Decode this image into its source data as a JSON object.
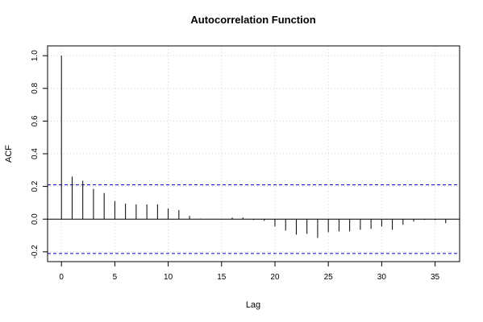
{
  "chart_data": {
    "type": "bar",
    "title": "Autocorrelation Function",
    "xlabel": "Lag",
    "ylabel": "ACF",
    "xlim": [
      -1.3,
      37.3
    ],
    "ylim": [
      -0.26,
      1.06
    ],
    "x_ticks": [
      "0",
      "5",
      "10",
      "15",
      "20",
      "25",
      "30",
      "35"
    ],
    "y_ticks": [
      "-0.2",
      "0.0",
      "0.2",
      "0.4",
      "0.6",
      "0.8",
      "1.0"
    ],
    "grid": true,
    "confidence_bound": 0.21,
    "x": [
      0,
      1,
      2,
      3,
      4,
      5,
      6,
      7,
      8,
      9,
      10,
      11,
      12,
      13,
      14,
      15,
      16,
      17,
      18,
      19,
      20,
      21,
      22,
      23,
      24,
      25,
      26,
      27,
      28,
      29,
      30,
      31,
      32,
      33,
      34,
      35,
      36
    ],
    "values": [
      1.0,
      0.26,
      0.235,
      0.185,
      0.16,
      0.11,
      0.095,
      0.09,
      0.09,
      0.09,
      0.065,
      0.055,
      0.02,
      0.003,
      0.0,
      0.0,
      0.01,
      0.01,
      -0.005,
      -0.01,
      -0.045,
      -0.07,
      -0.095,
      -0.09,
      -0.115,
      -0.08,
      -0.075,
      -0.075,
      -0.065,
      -0.06,
      -0.045,
      -0.065,
      -0.035,
      -0.015,
      -0.005,
      -0.005,
      -0.025
    ],
    "colors": {
      "bars": "#000000",
      "confidence": "#0000cc",
      "grid": "#d3d3d3"
    }
  }
}
